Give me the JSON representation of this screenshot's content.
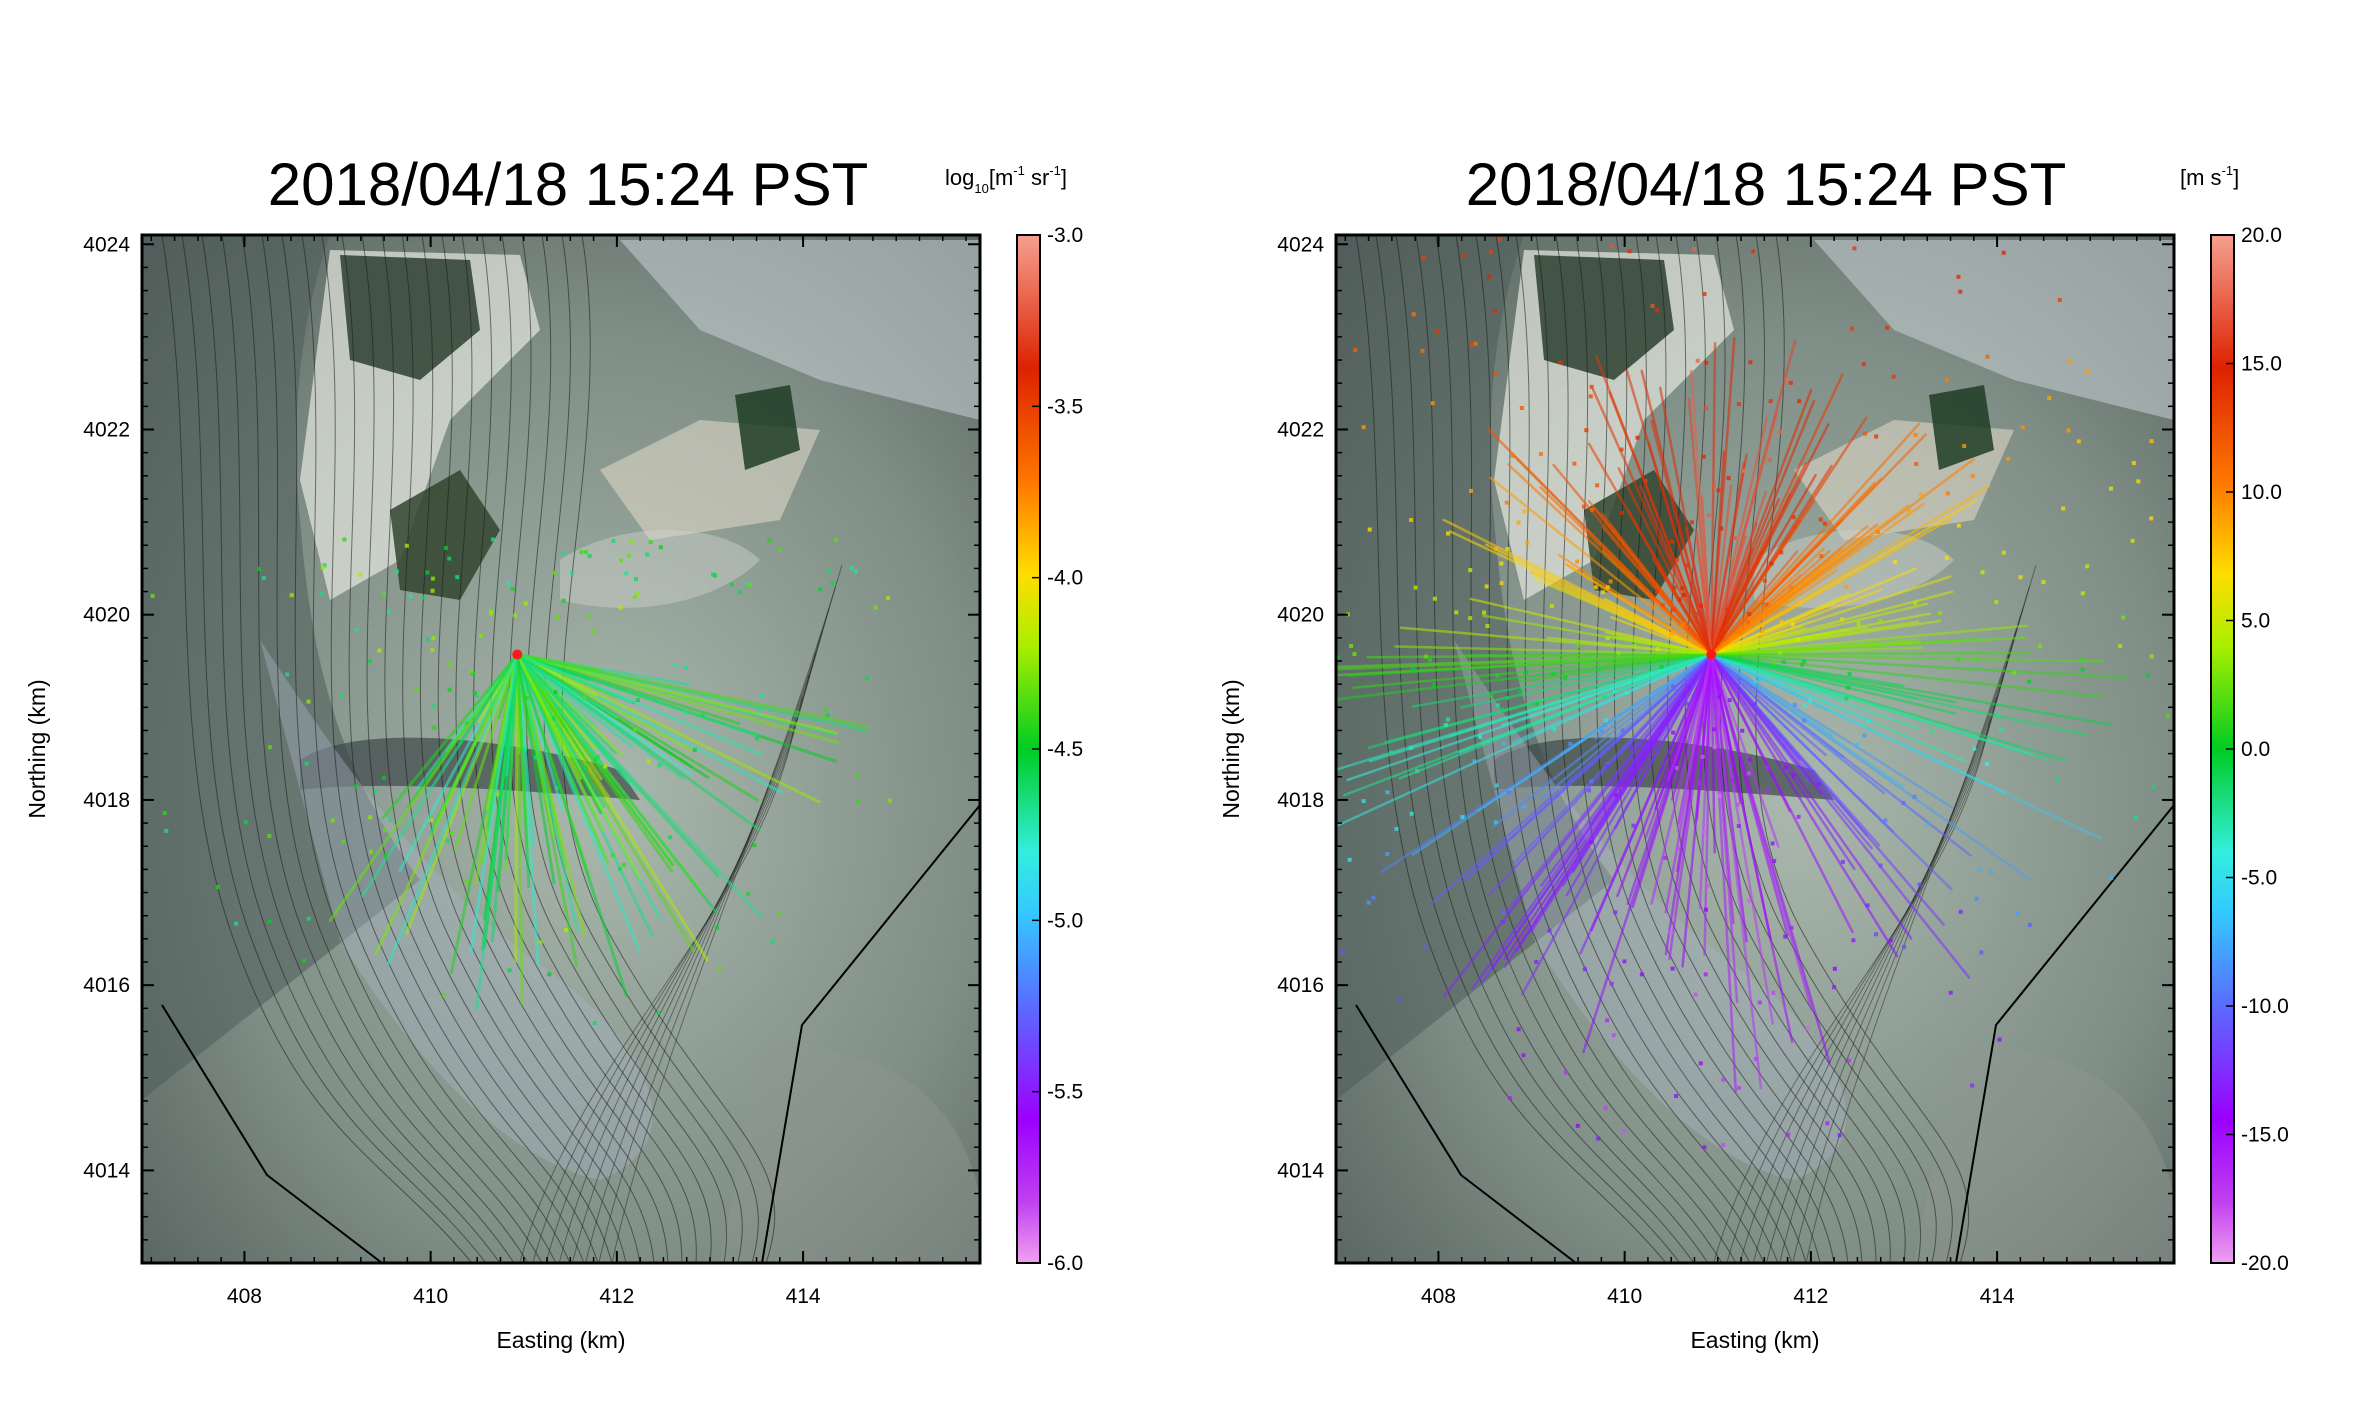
{
  "colors": {
    "background": "#ffffff",
    "axis": "#000000",
    "marker": "#ff1a1a",
    "map_base": "#7f8a84",
    "contour": "#1a1a1a"
  },
  "chart_data": [
    {
      "type": "heatmap",
      "title": "2018/04/18 15:24 PST",
      "xlabel": "Easting (km)",
      "ylabel": "Northing (km)",
      "xlim": [
        406.9,
        415.9
      ],
      "ylim": [
        4013.0,
        4024.1
      ],
      "x_ticks": [
        408,
        410,
        412,
        414
      ],
      "y_ticks": [
        4014,
        4016,
        4018,
        4020,
        4022,
        4024
      ],
      "colorbar": {
        "label_main": "log",
        "label_sub": "10",
        "label_rest": "[m",
        "label_exp1": "-1",
        "label_mid": " sr",
        "label_exp2": "-1",
        "label_end": "]",
        "range": [
          -6.0,
          -3.0
        ],
        "ticks": [
          "-3.0",
          "-3.5",
          "-4.0",
          "-4.5",
          "-5.0",
          "-5.5",
          "-6.0"
        ],
        "tick_values": [
          -3.0,
          -3.5,
          -4.0,
          -4.5,
          -5.0,
          -5.5,
          -6.0
        ],
        "colors": [
          "#f0a0f0",
          "#9b00ff",
          "#5a6cff",
          "#33eedd",
          "#00cc22",
          "#aaee00",
          "#ffdd00",
          "#ff7700",
          "#dd2200",
          "#f5a090"
        ]
      },
      "lidar_origin": [
        410.93,
        4019.57
      ],
      "field": "backscatter",
      "value_range_shown": [
        -5.2,
        -4.2
      ]
    },
    {
      "type": "heatmap",
      "title": "2018/04/18 15:24 PST",
      "xlabel": "Easting (km)",
      "ylabel": "Northing (km)",
      "xlim": [
        406.9,
        415.9
      ],
      "ylim": [
        4013.0,
        4024.1
      ],
      "x_ticks": [
        408,
        410,
        412,
        414
      ],
      "y_ticks": [
        4014,
        4016,
        4018,
        4020,
        4022,
        4024
      ],
      "colorbar": {
        "label_main": "[m s",
        "label_exp1": "-1",
        "label_end": "]",
        "range": [
          -20.0,
          20.0
        ],
        "ticks": [
          "20.0",
          "15.0",
          "10.0",
          "5.0",
          "0.0",
          "-5.0",
          "-10.0",
          "-15.0",
          "-20.0"
        ],
        "tick_values": [
          20,
          15,
          10,
          5,
          0,
          -5,
          -10,
          -15,
          -20
        ],
        "colors": [
          "#f0a0f0",
          "#9b00ff",
          "#5a6cff",
          "#33eedd",
          "#00cc22",
          "#aaee00",
          "#ffdd00",
          "#ff7700",
          "#dd2200",
          "#f5a090"
        ]
      },
      "lidar_origin": [
        410.93,
        4019.57
      ],
      "field": "radial_velocity",
      "value_range_shown": [
        -15.0,
        12.0
      ]
    }
  ]
}
